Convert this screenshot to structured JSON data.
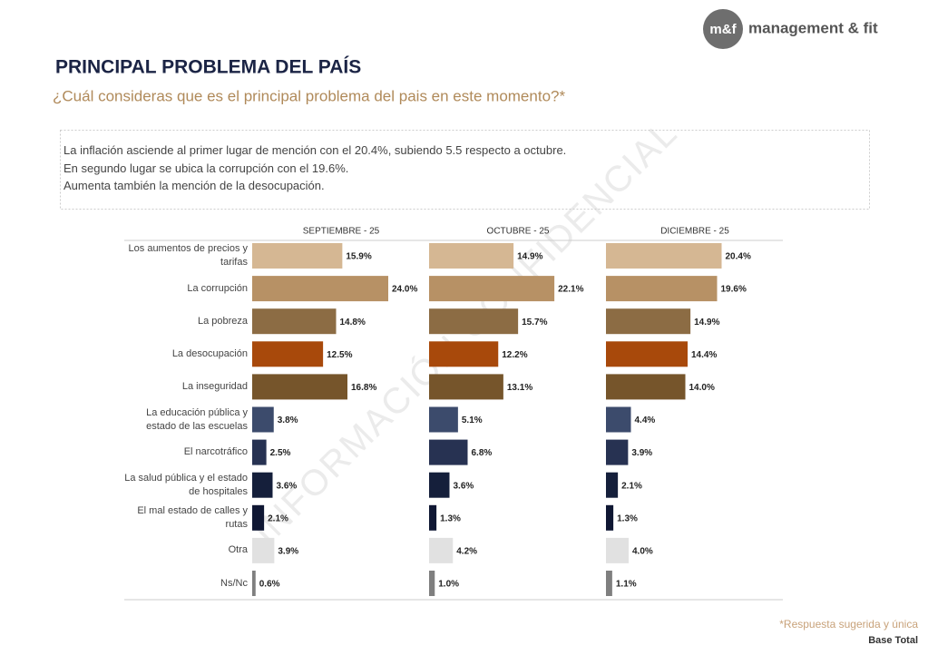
{
  "header": {
    "logo_mark": "m&f",
    "logo_text": "management & fit"
  },
  "chart_data": {
    "type": "bar",
    "orientation": "horizontal",
    "title": "PRINCIPAL PROBLEMA DEL PAÍS",
    "subtitle": "¿Cuál consideras que es el principal problema del pais en este momento?*",
    "notes": [
      "La inflación asciende al primer lugar de mención con el 20.4%, subiendo 5.5 respecto a octubre.",
      "En segundo lugar se ubica la corrupción con el 19.6%.",
      "Aumenta también la mención de la desocupación."
    ],
    "watermark": "INFORMACIÓN CONFIDENCIAL",
    "categories": [
      "Los aumentos de precios y tarifas",
      "La corrupción",
      "La pobreza",
      "La desocupación",
      "La inseguridad",
      "La educación pública y estado de las escuelas",
      "El narcotráfico",
      "La salud pública y el estado de hospitales",
      "El mal estado de calles y rutas",
      "Otra",
      "Ns/Nc"
    ],
    "colors": [
      "#d5b793",
      "#b79165",
      "#8c6c44",
      "#a8490b",
      "#76552b",
      "#3c4b6c",
      "#273252",
      "#151f3b",
      "#0f1733",
      "#e1e1e1",
      "#7f7f7f"
    ],
    "series": [
      {
        "name": "SEPTIEMBRE - 25",
        "values": [
          15.9,
          24.0,
          14.8,
          12.5,
          16.8,
          3.8,
          2.5,
          3.6,
          2.1,
          3.9,
          0.6
        ],
        "value_labels": [
          "15.9%",
          "24.0%",
          "14.8%",
          "12.5%",
          "16.8%",
          "3.8%",
          "2.5%",
          "3.6%",
          "2.1%",
          "3.9%",
          "0.6%"
        ]
      },
      {
        "name": "OCTUBRE - 25",
        "values": [
          14.9,
          22.1,
          15.7,
          12.2,
          13.1,
          5.1,
          6.8,
          3.6,
          1.3,
          4.2,
          1.0
        ],
        "value_labels": [
          "14.9%",
          "22.1%",
          "15.7%",
          "12.2%",
          "13.1%",
          "5.1%",
          "6.8%",
          "3.6%",
          "1.3%",
          "4.2%",
          "1.0%"
        ]
      },
      {
        "name": "DICIEMBRE - 25",
        "values": [
          20.4,
          19.6,
          14.9,
          14.4,
          14.0,
          4.4,
          3.9,
          2.1,
          1.3,
          4.0,
          1.1
        ],
        "value_labels": [
          "20.4%",
          "19.6%",
          "14.9%",
          "14.4%",
          "14.0%",
          "4.4%",
          "3.9%",
          "2.1%",
          "1.3%",
          "4.0%",
          "1.1%"
        ]
      }
    ],
    "footnotes": [
      "*Respuesta sugerida y única",
      "Base Total"
    ]
  }
}
